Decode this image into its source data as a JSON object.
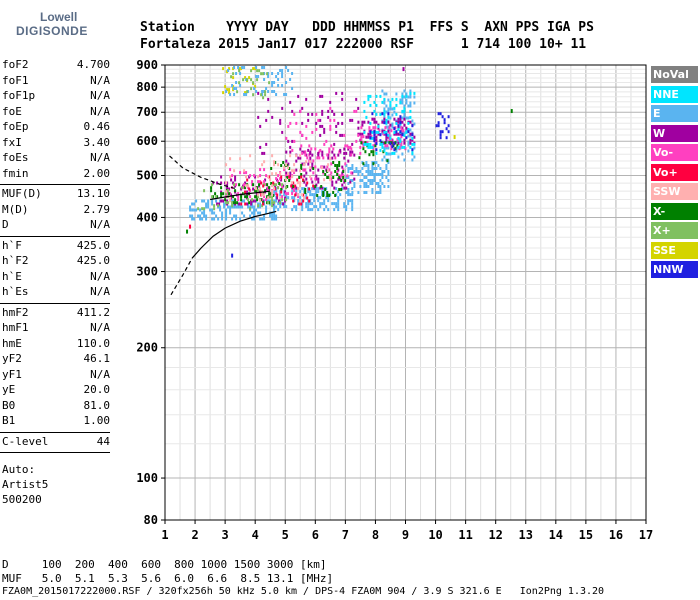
{
  "brand": {
    "line1": "Lowell",
    "line2": "DIGISONDE"
  },
  "header": {
    "row1": "Station    YYYY DAY   DDD HHMMSS P1  FFS S  AXN PPS IGA PS",
    "row2": "Fortaleza 2015 Jan17 017 222000 RSF      1 714 100 10+ 11"
  },
  "params_group1": [
    {
      "name": "foF2",
      "value": "4.700"
    },
    {
      "name": "foF1",
      "value": "N/A"
    },
    {
      "name": "foF1p",
      "value": "N/A"
    },
    {
      "name": "foE",
      "value": "N/A"
    },
    {
      "name": "foEp",
      "value": "0.46"
    },
    {
      "name": "fxI",
      "value": "3.40"
    },
    {
      "name": "foEs",
      "value": "N/A"
    },
    {
      "name": "fmin",
      "value": "2.00"
    }
  ],
  "params_group2": [
    {
      "name": "MUF(D)",
      "value": "13.10"
    },
    {
      "name": "M(D)",
      "value": "2.79"
    },
    {
      "name": "D",
      "value": "N/A"
    }
  ],
  "params_group3": [
    {
      "name": "h`F",
      "value": "425.0"
    },
    {
      "name": "h`F2",
      "value": "425.0"
    },
    {
      "name": "h`E",
      "value": "N/A"
    },
    {
      "name": "h`Es",
      "value": "N/A"
    }
  ],
  "params_group4": [
    {
      "name": "hmF2",
      "value": "411.2"
    },
    {
      "name": "hmF1",
      "value": "N/A"
    },
    {
      "name": "hmE",
      "value": "110.0"
    },
    {
      "name": "yF2",
      "value": "46.1"
    },
    {
      "name": "yF1",
      "value": "N/A"
    },
    {
      "name": "yE",
      "value": "20.0"
    },
    {
      "name": "B0",
      "value": "81.0"
    },
    {
      "name": "B1",
      "value": "1.00"
    }
  ],
  "clevel": {
    "name": "C-level",
    "value": "44"
  },
  "auto": {
    "line1": "Auto:",
    "line2": "Artist5",
    "line3": "500200"
  },
  "footer": {
    "d_row": "D     100  200  400  600  800 1000 1500 3000 [km]",
    "muf_row": "MUF   5.0  5.1  5.3  5.6  6.0  6.6  8.5 13.1 [MHz]",
    "file_row": "FZA0M_2015017222000.RSF / 320fx256h 50 kHz 5.0 km / DPS-4 FZA0M 904 / 3.9 S 321.6 E   Ion2Png 1.3.20"
  },
  "legend": [
    {
      "label": "NoVal",
      "color": "#808080"
    },
    {
      "label": "NNE",
      "color": "#00e5ff"
    },
    {
      "label": "E",
      "color": "#5ab4f0"
    },
    {
      "label": "W",
      "color": "#a000a0"
    },
    {
      "label": "Vo-",
      "color": "#ff40c0"
    },
    {
      "label": "Vo+",
      "color": "#ff0040"
    },
    {
      "label": "SSW",
      "color": "#ffb0b0"
    },
    {
      "label": "X-",
      "color": "#008000"
    },
    {
      "label": "X+",
      "color": "#80c060"
    },
    {
      "label": "SSE",
      "color": "#d4d400"
    },
    {
      "label": "NNW",
      "color": "#2020e0"
    }
  ],
  "chart_data": {
    "type": "scatter",
    "title": "",
    "xlabel": "",
    "ylabel": "",
    "xlim": [
      1,
      17
    ],
    "ylim": [
      80,
      900
    ],
    "yscale": "log",
    "x_ticks": [
      "1",
      "2",
      "3",
      "4",
      "5",
      "6",
      "7",
      "8",
      "9",
      "10",
      "11",
      "12",
      "13",
      "14",
      "15",
      "16",
      "17"
    ],
    "y_ticks": [
      "80",
      "100",
      "200",
      "300",
      "400",
      "500",
      "600",
      "700",
      "800",
      "900"
    ],
    "grid": true,
    "clusters": [
      {
        "color": "#5ab4f0",
        "x": [
          1.8,
          4.7
        ],
        "y": [
          395,
          440
        ],
        "density": 0.85
      },
      {
        "color": "#5ab4f0",
        "x": [
          4.6,
          7.2
        ],
        "y": [
          420,
          470
        ],
        "density": 0.8
      },
      {
        "color": "#5ab4f0",
        "x": [
          7.0,
          8.4
        ],
        "y": [
          455,
          540
        ],
        "density": 0.8
      },
      {
        "color": "#5ab4f0",
        "x": [
          8.2,
          9.3
        ],
        "y": [
          540,
          790
        ],
        "density": 0.55
      },
      {
        "color": "#a000a0",
        "x": [
          2.5,
          5.0
        ],
        "y": [
          430,
          500
        ],
        "density": 0.35
      },
      {
        "color": "#a000a0",
        "x": [
          5.0,
          7.3
        ],
        "y": [
          470,
          580
        ],
        "density": 0.3
      },
      {
        "color": "#a000a0",
        "x": [
          7.4,
          9.3
        ],
        "y": [
          590,
          680
        ],
        "density": 0.55
      },
      {
        "color": "#ff40c0",
        "x": [
          3.0,
          5.5
        ],
        "y": [
          440,
          520
        ],
        "density": 0.3
      },
      {
        "color": "#ff40c0",
        "x": [
          5.5,
          7.2
        ],
        "y": [
          490,
          590
        ],
        "density": 0.3
      },
      {
        "color": "#ff40c0",
        "x": [
          7.5,
          9.0
        ],
        "y": [
          580,
          650
        ],
        "density": 0.4
      },
      {
        "color": "#008000",
        "x": [
          2.5,
          4.5
        ],
        "y": [
          430,
          480
        ],
        "density": 0.35
      },
      {
        "color": "#008000",
        "x": [
          4.5,
          7.0
        ],
        "y": [
          450,
          540
        ],
        "density": 0.25
      },
      {
        "color": "#008000",
        "x": [
          7.3,
          8.7
        ],
        "y": [
          530,
          600
        ],
        "density": 0.25
      },
      {
        "color": "#80c060",
        "x": [
          2.0,
          5.0
        ],
        "y": [
          420,
          480
        ],
        "density": 0.2
      },
      {
        "color": "#00e5ff",
        "x": [
          7.6,
          9.3
        ],
        "y": [
          560,
          780
        ],
        "density": 0.3
      },
      {
        "color": "#2020e0",
        "x": [
          7.8,
          9.3
        ],
        "y": [
          570,
          700
        ],
        "density": 0.3
      },
      {
        "color": "#2020e0",
        "x": [
          10.0,
          10.4
        ],
        "y": [
          610,
          700
        ],
        "density": 0.5
      },
      {
        "color": "#ff0040",
        "x": [
          3.5,
          6.0
        ],
        "y": [
          430,
          500
        ],
        "density": 0.15
      },
      {
        "color": "#ffb0b0",
        "x": [
          3.0,
          6.5
        ],
        "y": [
          440,
          560
        ],
        "density": 0.15
      },
      {
        "color": "#d4d400",
        "x": [
          2.9,
          4.0
        ],
        "y": [
          780,
          890
        ],
        "density": 0.3
      },
      {
        "color": "#5ab4f0",
        "x": [
          3.0,
          5.2
        ],
        "y": [
          770,
          895
        ],
        "density": 0.3
      },
      {
        "color": "#80c060",
        "x": [
          2.9,
          4.5
        ],
        "y": [
          760,
          880
        ],
        "density": 0.2
      },
      {
        "color": "#a000a0",
        "x": [
          4.0,
          7.5
        ],
        "y": [
          560,
          780
        ],
        "density": 0.12
      },
      {
        "color": "#ff40c0",
        "x": [
          5.0,
          7.5
        ],
        "y": [
          560,
          720
        ],
        "density": 0.1
      }
    ],
    "scatter_points": [
      {
        "x": 12.5,
        "y": 712,
        "color": "#008000"
      },
      {
        "x": 10.6,
        "y": 620,
        "color": "#d4d400"
      },
      {
        "x": 8.9,
        "y": 890,
        "color": "#a000a0"
      },
      {
        "x": 3.2,
        "y": 330,
        "color": "#2020e0"
      },
      {
        "x": 1.7,
        "y": 375,
        "color": "#008000"
      },
      {
        "x": 1.8,
        "y": 385,
        "color": "#ff0040"
      }
    ],
    "profile_solid": {
      "x": [
        1.9,
        2.2,
        2.6,
        3.0,
        3.5,
        4.0,
        4.4,
        4.7
      ],
      "y": [
        322,
        340,
        362,
        378,
        392,
        402,
        408,
        413
      ]
    },
    "profile_dashed": {
      "x": [
        1.2,
        1.6,
        1.9
      ],
      "y": [
        265,
        295,
        322
      ]
    },
    "profile_dashed_upper": {
      "x": [
        1.15,
        1.6,
        2.2,
        2.8,
        3.4
      ],
      "y": [
        555,
        520,
        495,
        478,
        465
      ]
    },
    "trace_black": {
      "x": [
        2.5,
        3.5,
        4.5
      ],
      "y": [
        440,
        452,
        460
      ]
    }
  }
}
